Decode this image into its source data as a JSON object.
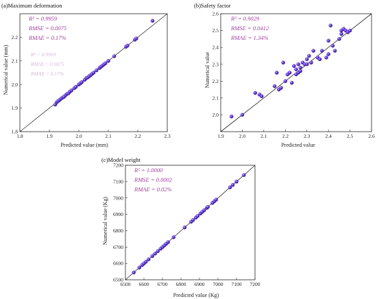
{
  "chart_data": [
    {
      "type": "scatter",
      "title": "(a)Maximum deformation",
      "xlabel": "Predicted value (mm)",
      "ylabel": "Numerical value (mm)",
      "xlim": [
        1.8,
        2.3
      ],
      "ylim": [
        1.8,
        2.3
      ],
      "xticks": [
        "1.8",
        "1.9",
        "2.0",
        "2.1",
        "2.2",
        "2.3"
      ],
      "yticks": [
        "1.8",
        "1.9",
        "2.0",
        "2.1",
        "2.2"
      ],
      "stats": [
        "R² = 0.9959",
        "RMSE = 0.0075",
        "RMAE = 0.17%"
      ],
      "ghost_text": [
        "R² = 0.9959",
        "RMSE = 0.0075",
        "RMAE = 0.17%"
      ],
      "reference_line": "y = x",
      "marker_color": "#5a32c8",
      "points": [
        [
          1.92,
          1.915
        ],
        [
          1.925,
          1.925
        ],
        [
          1.93,
          1.93
        ],
        [
          1.935,
          1.935
        ],
        [
          1.94,
          1.94
        ],
        [
          1.945,
          1.945
        ],
        [
          1.95,
          1.948
        ],
        [
          1.955,
          1.955
        ],
        [
          1.96,
          1.96
        ],
        [
          1.965,
          1.963
        ],
        [
          1.97,
          1.97
        ],
        [
          1.975,
          1.975
        ],
        [
          1.985,
          1.985
        ],
        [
          1.99,
          1.99
        ],
        [
          2.0,
          2.0
        ],
        [
          2.005,
          2.005
        ],
        [
          2.01,
          2.01
        ],
        [
          2.02,
          2.02
        ],
        [
          2.025,
          2.027
        ],
        [
          2.03,
          2.03
        ],
        [
          2.035,
          2.035
        ],
        [
          2.04,
          2.04
        ],
        [
          2.045,
          2.045
        ],
        [
          2.05,
          2.05
        ],
        [
          2.06,
          2.06
        ],
        [
          2.07,
          2.07
        ],
        [
          2.075,
          2.075
        ],
        [
          2.08,
          2.08
        ],
        [
          2.085,
          2.085
        ],
        [
          2.09,
          2.09
        ],
        [
          2.1,
          2.1
        ],
        [
          2.12,
          2.12
        ],
        [
          2.16,
          2.16
        ],
        [
          2.165,
          2.165
        ],
        [
          2.19,
          2.19
        ],
        [
          2.195,
          2.195
        ],
        [
          2.25,
          2.27
        ]
      ]
    },
    {
      "type": "scatter",
      "title": "(b)Safety factor",
      "xlabel": "Predicted value",
      "ylabel": "Numerical value",
      "xlim": [
        1.9,
        2.6
      ],
      "ylim": [
        1.9,
        2.6
      ],
      "xticks": [
        "1.9",
        "2.0",
        "2.1",
        "2.2",
        "2.3",
        "2.4",
        "2.5",
        "2.6"
      ],
      "yticks": [
        "2.0",
        "2.1",
        "2.2",
        "2.3",
        "2.4",
        "2.5",
        "2.6"
      ],
      "stats": [
        "R² = 0.9029",
        "RMSE = 0.0412",
        "RMAE = 1.34%"
      ],
      "reference_line": "y = x",
      "marker_color": "#5a32c8",
      "points": [
        [
          1.95,
          1.99
        ],
        [
          2.0,
          2.0
        ],
        [
          2.06,
          2.13
        ],
        [
          2.08,
          2.12
        ],
        [
          2.09,
          2.11
        ],
        [
          2.15,
          2.17
        ],
        [
          2.16,
          2.25
        ],
        [
          2.17,
          2.15
        ],
        [
          2.18,
          2.16
        ],
        [
          2.19,
          2.31
        ],
        [
          2.2,
          2.2
        ],
        [
          2.21,
          2.24
        ],
        [
          2.22,
          2.25
        ],
        [
          2.23,
          2.19
        ],
        [
          2.24,
          2.29
        ],
        [
          2.25,
          2.24
        ],
        [
          2.25,
          2.27
        ],
        [
          2.26,
          2.25
        ],
        [
          2.26,
          2.3
        ],
        [
          2.27,
          2.28
        ],
        [
          2.27,
          2.26
        ],
        [
          2.28,
          2.31
        ],
        [
          2.29,
          2.3
        ],
        [
          2.3,
          2.33
        ],
        [
          2.3,
          2.3
        ],
        [
          2.31,
          2.35
        ],
        [
          2.32,
          2.31
        ],
        [
          2.33,
          2.38
        ],
        [
          2.35,
          2.34
        ],
        [
          2.36,
          2.33
        ],
        [
          2.37,
          2.38
        ],
        [
          2.39,
          2.34
        ],
        [
          2.4,
          2.36
        ],
        [
          2.4,
          2.44
        ],
        [
          2.41,
          2.53
        ],
        [
          2.42,
          2.41
        ],
        [
          2.43,
          2.38
        ],
        [
          2.45,
          2.45
        ],
        [
          2.46,
          2.48
        ],
        [
          2.46,
          2.5
        ],
        [
          2.47,
          2.51
        ],
        [
          2.48,
          2.5
        ],
        [
          2.49,
          2.49
        ],
        [
          2.5,
          2.5
        ]
      ]
    },
    {
      "type": "scatter",
      "title": "(c)Model weight",
      "xlabel": "Predicted value (Kg)",
      "ylabel": "Numerical value (Kg)",
      "xlim": [
        6500,
        7200
      ],
      "ylim": [
        6500,
        7200
      ],
      "xticks": [
        "6500",
        "6600",
        "6700",
        "6800",
        "6900",
        "7000",
        "7100",
        "7200"
      ],
      "yticks": [
        "6500",
        "6600",
        "6700",
        "6800",
        "6900",
        "7000",
        "7100",
        "7200"
      ],
      "stats": [
        "R² = 1.0000",
        "RMSE = 0.0002",
        "RMAE = 0.02%"
      ],
      "reference_line": "y = x",
      "marker_color": "#5a32c8",
      "points": [
        [
          6545,
          6545
        ],
        [
          6575,
          6575
        ],
        [
          6590,
          6590
        ],
        [
          6600,
          6600
        ],
        [
          6610,
          6610
        ],
        [
          6625,
          6625
        ],
        [
          6645,
          6645
        ],
        [
          6660,
          6660
        ],
        [
          6675,
          6675
        ],
        [
          6690,
          6690
        ],
        [
          6700,
          6700
        ],
        [
          6710,
          6710
        ],
        [
          6720,
          6720
        ],
        [
          6730,
          6730
        ],
        [
          6760,
          6760
        ],
        [
          6820,
          6820
        ],
        [
          6855,
          6855
        ],
        [
          6865,
          6865
        ],
        [
          6880,
          6880
        ],
        [
          6890,
          6890
        ],
        [
          6905,
          6905
        ],
        [
          6915,
          6915
        ],
        [
          6925,
          6925
        ],
        [
          6940,
          6940
        ],
        [
          6945,
          6945
        ],
        [
          6970,
          6970
        ],
        [
          6980,
          6980
        ],
        [
          6990,
          6990
        ],
        [
          7065,
          7065
        ],
        [
          7080,
          7080
        ],
        [
          7100,
          7100
        ],
        [
          7140,
          7140
        ]
      ]
    }
  ]
}
